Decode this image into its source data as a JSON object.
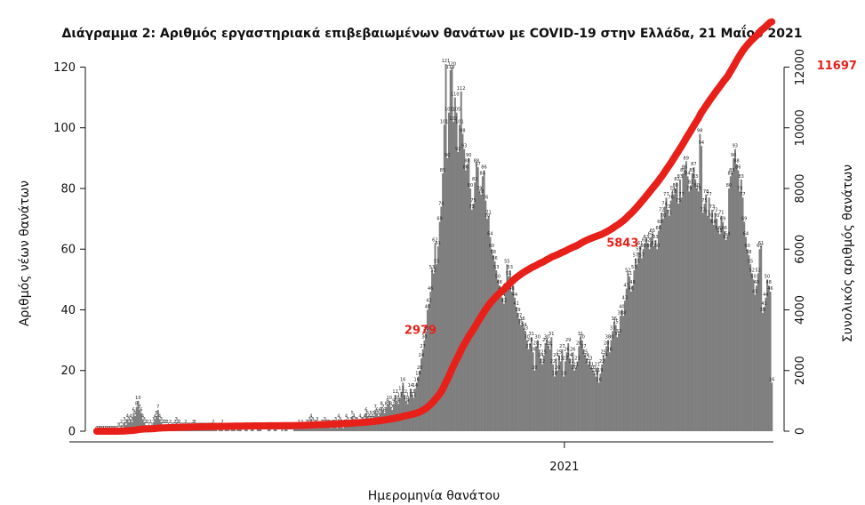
{
  "chart_data": {
    "type": "bar",
    "title": "Διάγραμμα 2: Αριθμός εργαστηριακά επιβεβαιωμένων θανάτων με COVID-19 στην Ελλάδα, 21 Μαΐου 2021",
    "xlabel": "Ημερομηνία θανάτου",
    "ylabel": "Αριθμός νέων θανάτων",
    "y2label": "Συνολικός αριθμός θανάτων",
    "ylim": [
      0,
      126
    ],
    "yticks": [
      0,
      20,
      40,
      60,
      80,
      100,
      120
    ],
    "y2lim": [
      0,
      12600
    ],
    "y2ticks": [
      0,
      2000,
      4000,
      6000,
      8000,
      10000,
      12000
    ],
    "x_tick_label": "2021",
    "x_tick_index": 306,
    "bar_color": "#7f7f7f",
    "line_color": "#e8201a",
    "daily_values": [
      0,
      0,
      0,
      0,
      0,
      0,
      0,
      0,
      0,
      0,
      0,
      0,
      0,
      0,
      1,
      1,
      2,
      1,
      3,
      2,
      4,
      3,
      4,
      3,
      6,
      5,
      8,
      10,
      7,
      6,
      4,
      3,
      2,
      2,
      1,
      2,
      1,
      3,
      4,
      5,
      7,
      4,
      3,
      2,
      2,
      2,
      2,
      1,
      2,
      1,
      1,
      2,
      3,
      2,
      2,
      1,
      1,
      1,
      2,
      1,
      1,
      1,
      1,
      2,
      2,
      1,
      1,
      1,
      1,
      1,
      1,
      1,
      1,
      1,
      1,
      1,
      2,
      1,
      1,
      0,
      1,
      1,
      2,
      0,
      1,
      1,
      1,
      0,
      1,
      1,
      1,
      0,
      1,
      1,
      1,
      0,
      0,
      1,
      1,
      0,
      0,
      1,
      1,
      0,
      0,
      1,
      1,
      1,
      0,
      0,
      0,
      0,
      1,
      1,
      0,
      0,
      1,
      1,
      0,
      0,
      0,
      1,
      0,
      1,
      1,
      0,
      0,
      0,
      0,
      1,
      1,
      1,
      2,
      1,
      2,
      1,
      1,
      2,
      2,
      3,
      4,
      3,
      2,
      2,
      3,
      1,
      1,
      2,
      2,
      3,
      2,
      2,
      2,
      1,
      2,
      2,
      3,
      1,
      4,
      3,
      2,
      1,
      2,
      4,
      3,
      2,
      3,
      5,
      4,
      3,
      3,
      2,
      4,
      3,
      3,
      4,
      6,
      5,
      4,
      5,
      4,
      5,
      7,
      6,
      5,
      6,
      8,
      7,
      6,
      8,
      9,
      10,
      8,
      7,
      9,
      12,
      10,
      9,
      11,
      13,
      16,
      12,
      10,
      9,
      11,
      14,
      12,
      11,
      14,
      16,
      18,
      20,
      24,
      27,
      30,
      33,
      40,
      42,
      46,
      53,
      52,
      62,
      55,
      61,
      69,
      74,
      85,
      101,
      121,
      90,
      105,
      119,
      120,
      102,
      110,
      105,
      92,
      101,
      112,
      98,
      93,
      86,
      88,
      90,
      80,
      73,
      75,
      82,
      88,
      87,
      79,
      78,
      84,
      86,
      76,
      70,
      71,
      64,
      60,
      58,
      56,
      53,
      50,
      48,
      46,
      44,
      42,
      47,
      55,
      51,
      53,
      46,
      48,
      44,
      41,
      39,
      37,
      35,
      36,
      34,
      33,
      30,
      27,
      29,
      31,
      26,
      20,
      28,
      30,
      27,
      24,
      22,
      25,
      29,
      30,
      28,
      27,
      31,
      22,
      18,
      24,
      20,
      25,
      23,
      27,
      18,
      23,
      26,
      29,
      24,
      22,
      26,
      20,
      21,
      23,
      28,
      31,
      30,
      27,
      25,
      24,
      22,
      23,
      21,
      20,
      19,
      18,
      21,
      16,
      19,
      22,
      25,
      24,
      28,
      30,
      26,
      30,
      33,
      36,
      35,
      31,
      32,
      38,
      40,
      38,
      43,
      47,
      52,
      51,
      46,
      48,
      53,
      57,
      55,
      59,
      61,
      57,
      60,
      62,
      63,
      62,
      60,
      64,
      65,
      61,
      63,
      60,
      66,
      68,
      72,
      70,
      74,
      77,
      73,
      71,
      76,
      79,
      78,
      80,
      82,
      75,
      83,
      77,
      85,
      86,
      89,
      84,
      79,
      81,
      85,
      87,
      83,
      80,
      79,
      98,
      94,
      72,
      75,
      78,
      71,
      77,
      70,
      73,
      68,
      72,
      70,
      66,
      65,
      71,
      69,
      66,
      63,
      64,
      80,
      84,
      85,
      90,
      93,
      88,
      86,
      79,
      83,
      77,
      69,
      64,
      60,
      58,
      55,
      52,
      50,
      45,
      48,
      52,
      60,
      61,
      39,
      41,
      44,
      50,
      48,
      46,
      16
    ],
    "cumulative_endpoint_labels": [
      {
        "index": 215,
        "value": 2979,
        "text": "2979"
      },
      {
        "index": 347,
        "value": 5843,
        "text": "5843"
      },
      {
        "index": 487,
        "value": 11697,
        "text": "11697"
      }
    ]
  }
}
